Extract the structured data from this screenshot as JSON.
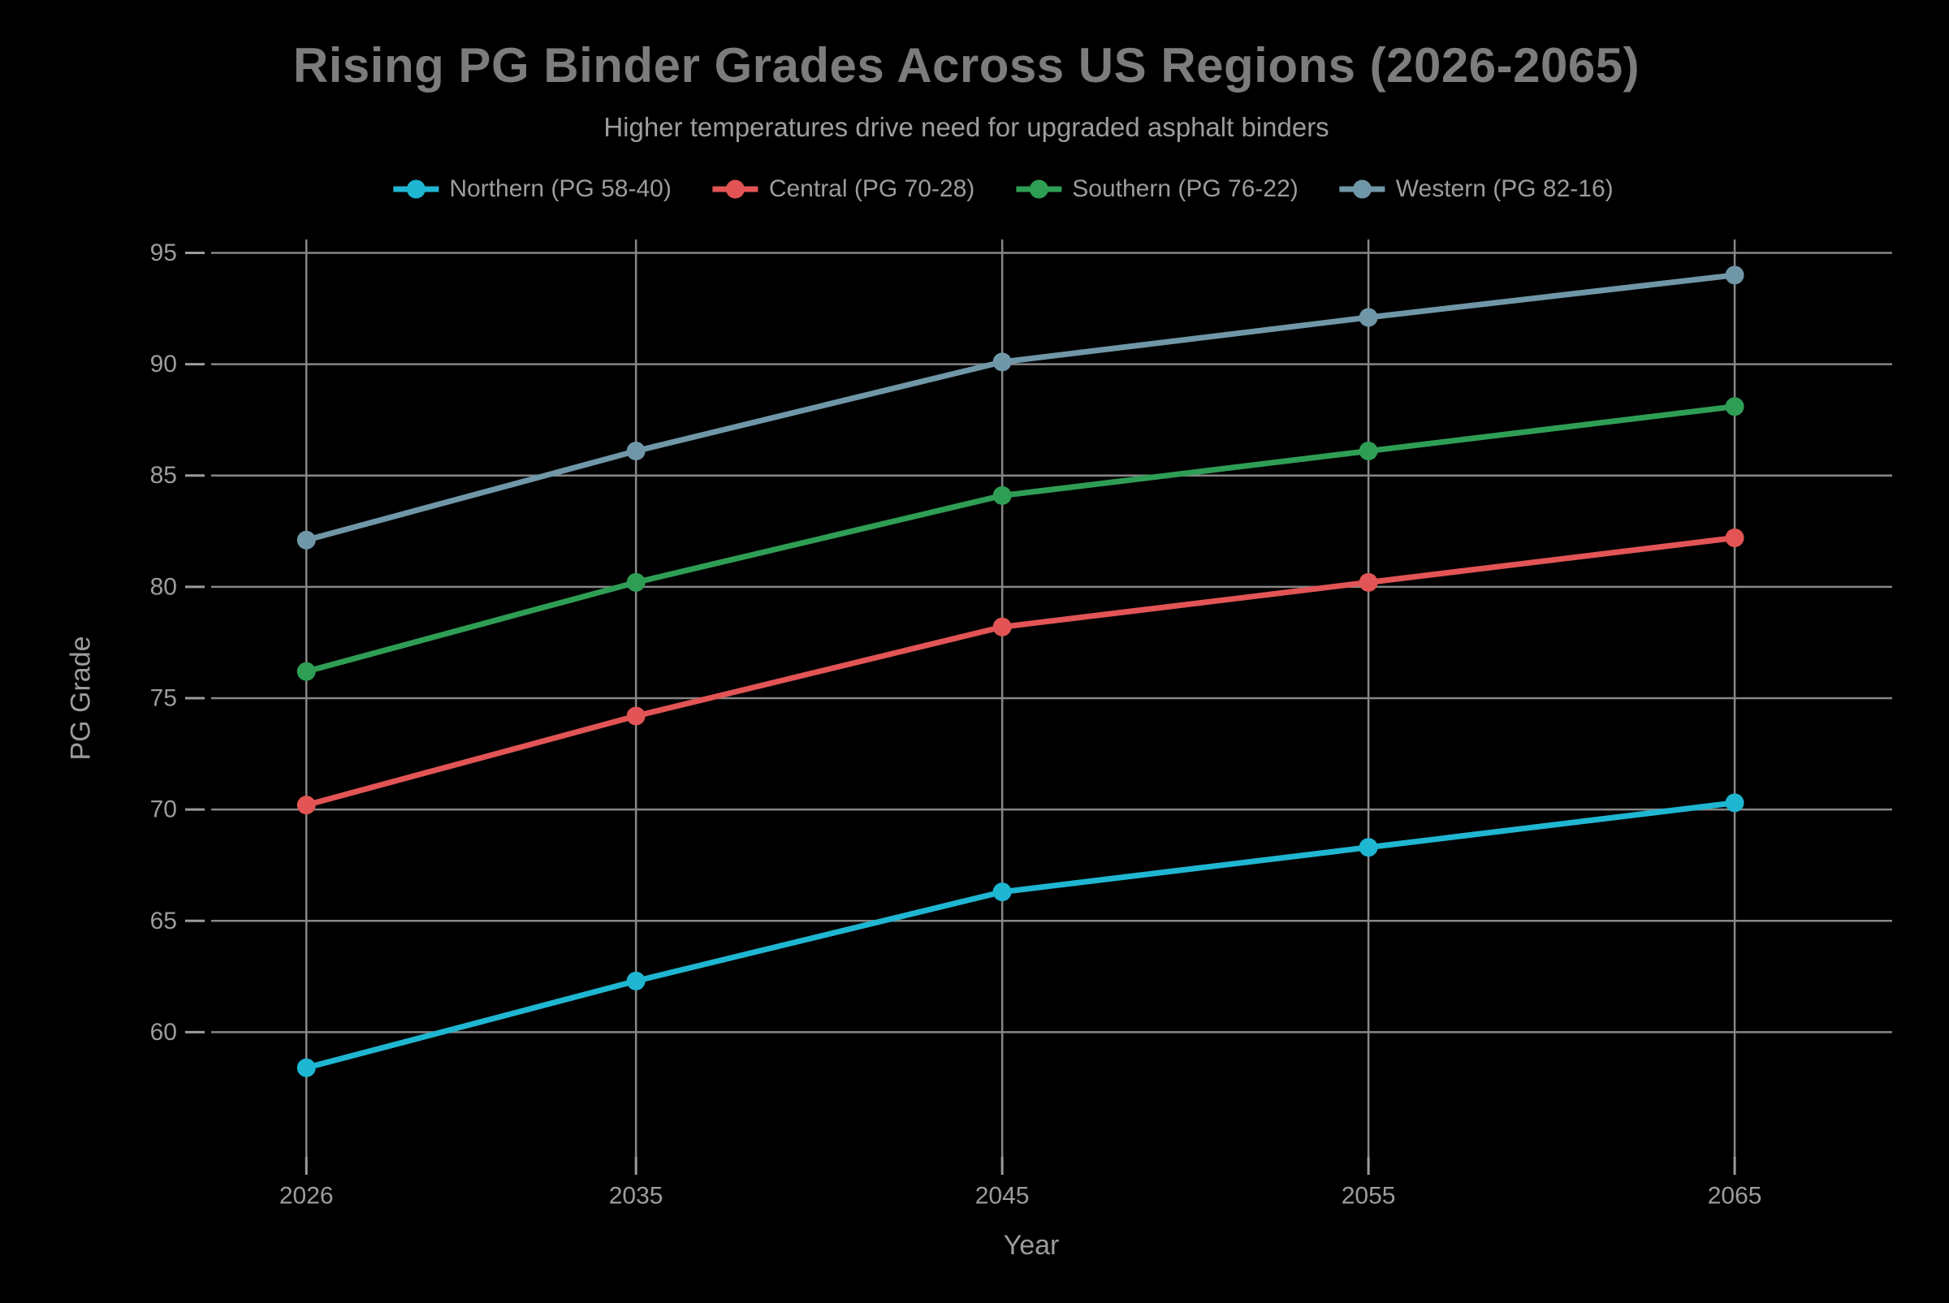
{
  "title": "Rising PG Binder Grades Across US Regions (2026-2065)",
  "subtitle": "Higher temperatures drive need for upgraded asphalt binders",
  "colors": {
    "background": "#000000",
    "grid": "#878787",
    "title_text": "#7c7c7c",
    "text": "#9c9c9c"
  },
  "chart_data": {
    "type": "line",
    "title": "Rising PG Binder Grades Across US Regions (2026-2065)",
    "subtitle": "Higher temperatures drive need for upgraded asphalt binders",
    "xlabel": "Year",
    "ylabel": "PG Grade",
    "x": [
      2026,
      2035,
      2045,
      2055,
      2065
    ],
    "x_tick_labels": [
      "2026",
      "2035",
      "2045",
      "2055",
      "2065"
    ],
    "y_ticks": [
      60,
      65,
      70,
      75,
      80,
      85,
      90,
      95
    ],
    "xlim": [
      2023.4,
      2069.3
    ],
    "ylim": [
      54.4,
      95.6
    ],
    "grid": true,
    "legend_position": "top-center",
    "series": [
      {
        "name": "Northern (PG 58-40)",
        "color": "#1fb6d2",
        "values": [
          58.4,
          62.3,
          66.3,
          68.3,
          70.3
        ]
      },
      {
        "name": "Central (PG 70-28)",
        "color": "#e25455",
        "values": [
          70.2,
          74.2,
          78.2,
          80.2,
          82.2
        ]
      },
      {
        "name": "Southern (PG 76-22)",
        "color": "#2f9e55",
        "values": [
          76.2,
          80.2,
          84.1,
          86.1,
          88.1
        ]
      },
      {
        "name": "Western (PG 82-16)",
        "color": "#6f97a8",
        "values": [
          82.1,
          86.1,
          90.1,
          92.1,
          94.0
        ]
      }
    ]
  }
}
